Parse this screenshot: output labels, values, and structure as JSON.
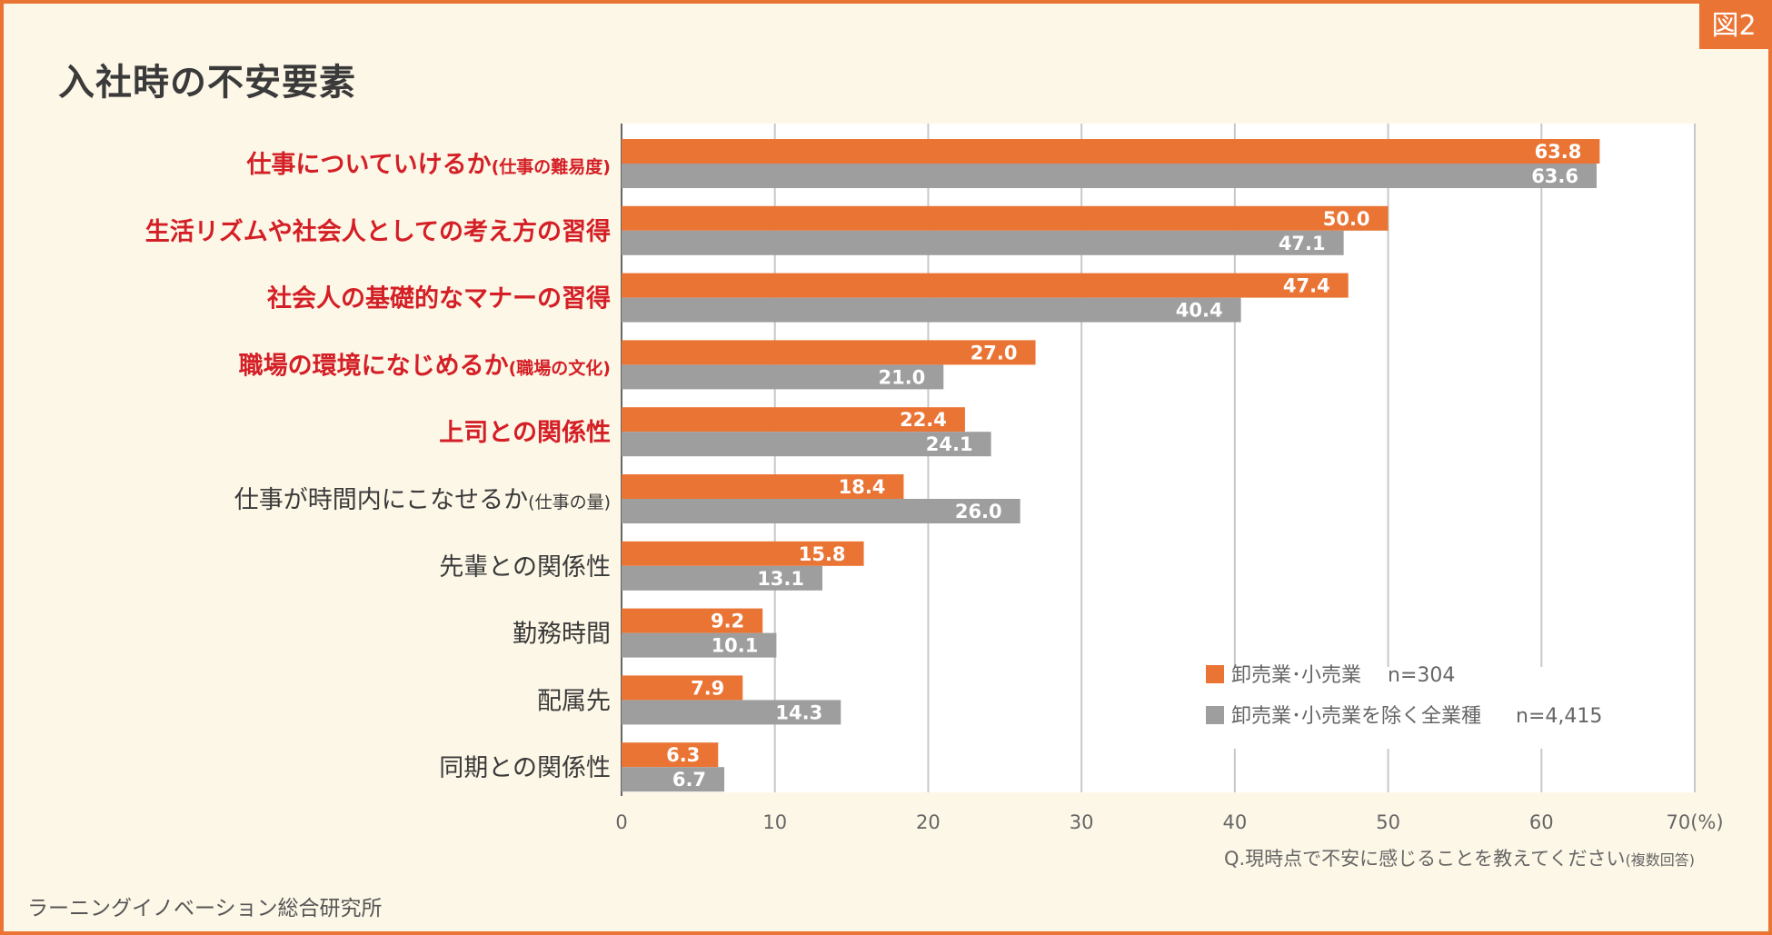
{
  "figure_tag": "図2",
  "credit": "ラーニングイノベーション総合研究所",
  "chart_data": {
    "type": "bar",
    "orientation": "horizontal",
    "title": "入社時の不安要素",
    "categories": [
      {
        "main": "仕事についていけるか",
        "sub": "(仕事の難易度)",
        "highlight": true
      },
      {
        "main": "生活リズムや社会人としての考え方の習得",
        "sub": "",
        "highlight": true
      },
      {
        "main": "社会人の基礎的なマナーの習得",
        "sub": "",
        "highlight": true
      },
      {
        "main": "職場の環境になじめるか",
        "sub": "(職場の文化)",
        "highlight": true
      },
      {
        "main": "上司との関係性",
        "sub": "",
        "highlight": true
      },
      {
        "main": "仕事が時間内にこなせるか",
        "sub": "(仕事の量)",
        "highlight": false
      },
      {
        "main": "先輩との関係性",
        "sub": "",
        "highlight": false
      },
      {
        "main": "勤務時間",
        "sub": "",
        "highlight": false
      },
      {
        "main": "配属先",
        "sub": "",
        "highlight": false
      },
      {
        "main": "同期との関係性",
        "sub": "",
        "highlight": false
      }
    ],
    "series": [
      {
        "name": "卸売業･小売業",
        "n_label": "n=304",
        "color": "#ea7434",
        "values": [
          63.8,
          50.0,
          47.4,
          27.0,
          22.4,
          18.4,
          15.8,
          9.2,
          7.9,
          6.3
        ]
      },
      {
        "name": "卸売業･小売業を除く全業種",
        "n_label": "n=4,415",
        "color": "#9e9e9e",
        "values": [
          63.6,
          47.1,
          40.4,
          21.0,
          24.1,
          26.0,
          13.1,
          10.1,
          14.3,
          6.7
        ]
      }
    ],
    "xlim": [
      0,
      70
    ],
    "ticks": [
      0,
      10,
      20,
      30,
      40,
      50,
      60,
      70
    ],
    "unit": "(%)",
    "grid": true,
    "legend_position": "bottom-right",
    "question": "Q.現時点で不安に感じることを教えてください",
    "question_note": "(複数回答)",
    "highlight_color": "#d41f26"
  }
}
